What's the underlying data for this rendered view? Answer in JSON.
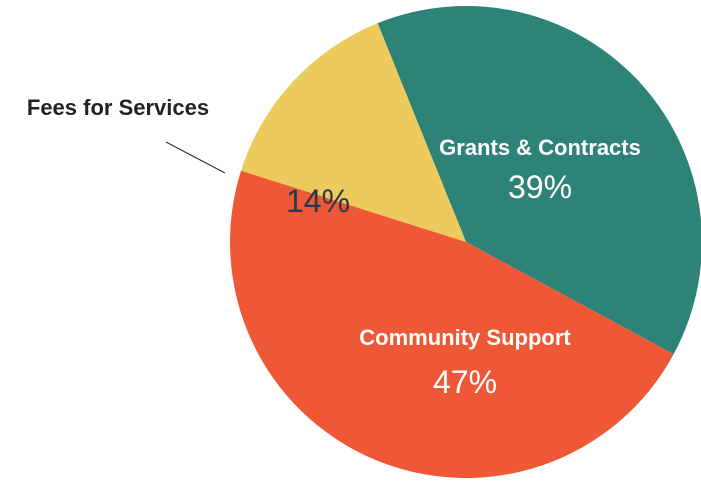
{
  "chart_data": {
    "type": "pie",
    "title": "",
    "slices": [
      {
        "label": "Grants & Contracts",
        "value": 39,
        "display": "39%",
        "color": "#2e8379"
      },
      {
        "label": "Community Support",
        "value": 47,
        "display": "47%",
        "color": "#ef5836"
      },
      {
        "label": "Fees for Services",
        "value": 14,
        "display": "14%",
        "color": "#ecca5c"
      }
    ],
    "legend": "none",
    "label_colors": {
      "inside_light": "#ffffff",
      "inside_dark": "#2b3a4a"
    }
  }
}
